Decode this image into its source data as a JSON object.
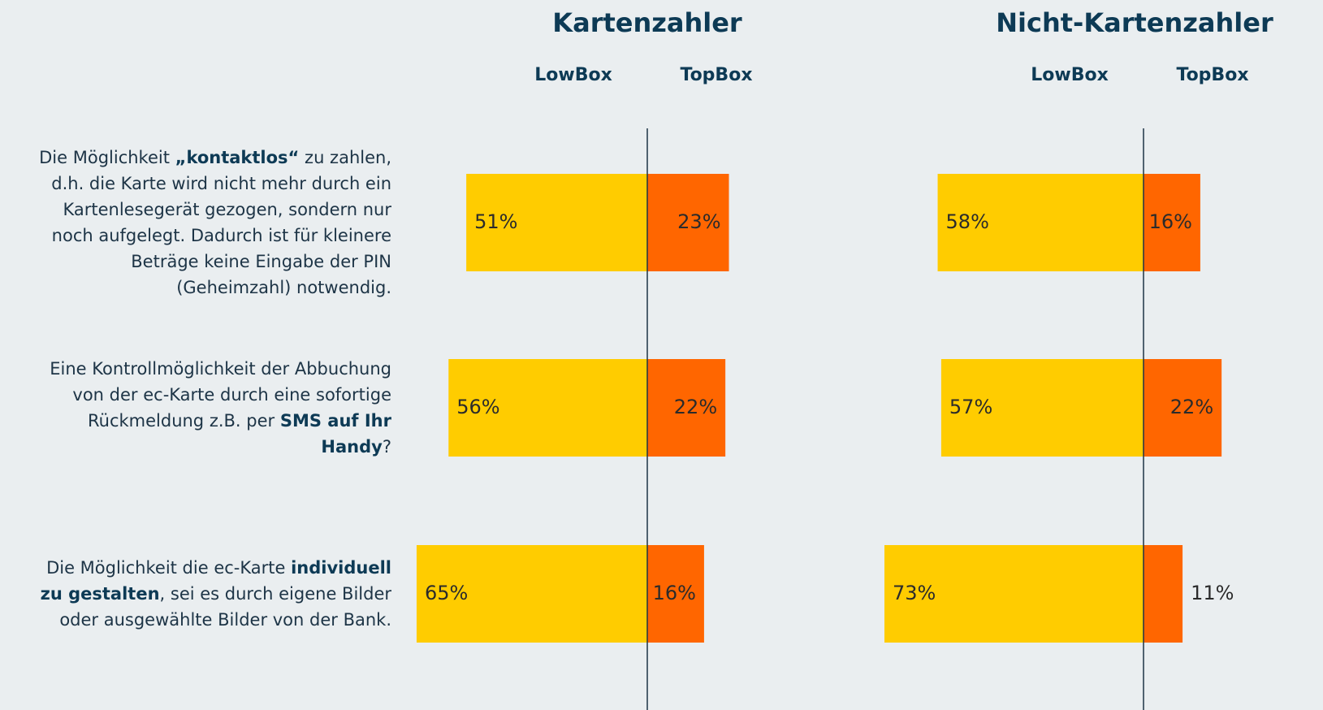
{
  "questions": [
    [
      {
        "text": "Die Möglichkeit ",
        "bold": false
      },
      {
        "text": "„kontaktlos“",
        "bold": true
      },
      {
        "text": " zu zahlen, d.h. die Karte wird nicht mehr durch ein Kartenlesegerät gezogen, sondern nur noch aufgelegt. Dadurch ist für kleinere Beträge keine Eingabe der PIN (Geheimzahl) notwendig.",
        "bold": false
      }
    ],
    [
      {
        "text": "Eine Kontrollmöglichkeit der Abbuchung von der ec-Karte durch eine sofortige Rückmeldung z.B. per ",
        "bold": false
      },
      {
        "text": "SMS auf Ihr Handy",
        "bold": true
      },
      {
        "text": "?",
        "bold": false
      }
    ],
    [
      {
        "text": "Die Möglichkeit die ec-Karte ",
        "bold": false
      },
      {
        "text": "individuell zu gestalten",
        "bold": true
      },
      {
        "text": ", sei es durch eigene Bilder oder ausgewählte Bilder von der Bank.",
        "bold": false
      }
    ]
  ],
  "chart_data": [
    {
      "type": "diverging-bar",
      "title": "Kartenzahler",
      "series": [
        {
          "name": "LowBox",
          "color": "#ffcc00",
          "values": [
            51,
            56,
            65
          ],
          "value_labels": [
            "51%",
            "56%",
            "65%"
          ]
        },
        {
          "name": "TopBox",
          "color": "#ff6600",
          "values": [
            23,
            22,
            16
          ],
          "value_labels": [
            "23%",
            "22%",
            "16%"
          ]
        }
      ]
    },
    {
      "type": "diverging-bar",
      "title": "Nicht-Kartenzahler",
      "series": [
        {
          "name": "LowBox",
          "color": "#ffcc00",
          "values": [
            58,
            57,
            73
          ],
          "value_labels": [
            "58%",
            "57%",
            "73%"
          ]
        },
        {
          "name": "TopBox",
          "color": "#ff6600",
          "values": [
            16,
            22,
            11
          ],
          "value_labels": [
            "16%",
            "22%",
            "11%"
          ]
        }
      ]
    }
  ]
}
